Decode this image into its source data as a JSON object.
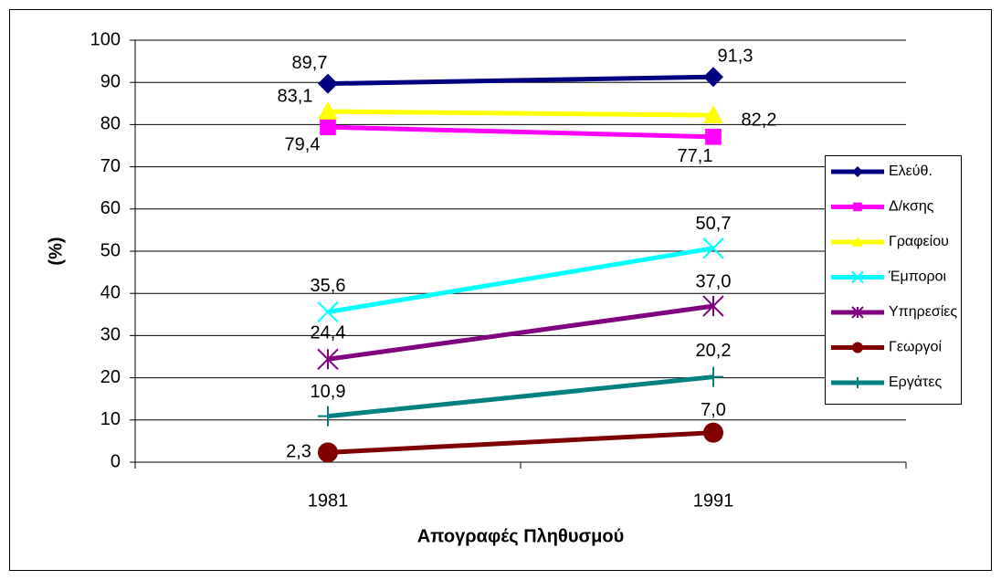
{
  "chart_data": {
    "type": "line",
    "categories": [
      "1981",
      "1991"
    ],
    "series": [
      {
        "name": "Ελεύθ.",
        "color": "#000080",
        "marker": "diamond",
        "values": [
          89.7,
          91.3
        ],
        "value_labels": [
          "89,7",
          "91,3"
        ]
      },
      {
        "name": "Δ/κσης",
        "color": "#FF00FF",
        "marker": "square",
        "values": [
          79.4,
          77.1
        ],
        "value_labels": [
          "79,4",
          "77,1"
        ]
      },
      {
        "name": "Γραφείου",
        "color": "#FFFF00",
        "marker": "triangle",
        "values": [
          83.1,
          82.2
        ],
        "value_labels": [
          "83,1",
          "82,2"
        ]
      },
      {
        "name": "Έμποροι",
        "color": "#00FFFF",
        "marker": "x",
        "values": [
          35.6,
          50.7
        ],
        "value_labels": [
          "35,6",
          "50,7"
        ]
      },
      {
        "name": "Υπηρεσίες",
        "color": "#800080",
        "marker": "star",
        "values": [
          24.4,
          37.0
        ],
        "value_labels": [
          "24,4",
          "37,0"
        ]
      },
      {
        "name": "Γεωργοί",
        "color": "#800000",
        "marker": "circle",
        "values": [
          2.3,
          7.0
        ],
        "value_labels": [
          "2,3",
          "7,0"
        ]
      },
      {
        "name": "Εργάτες",
        "color": "#008080",
        "marker": "plus",
        "values": [
          10.9,
          20.2
        ],
        "value_labels": [
          "10,9",
          "20,2"
        ]
      }
    ],
    "y_label": "(%)",
    "x_label": "Απογραφές Πληθυσμού",
    "ylim": [
      0,
      100
    ],
    "yticks": [
      0,
      10,
      20,
      30,
      40,
      50,
      60,
      70,
      80,
      90,
      100
    ],
    "grid": true,
    "legend": "right"
  }
}
